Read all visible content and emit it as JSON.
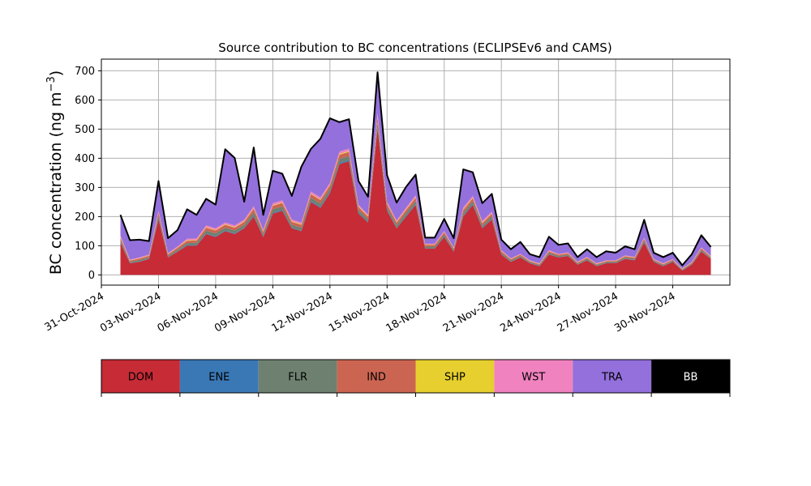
{
  "chart_data": {
    "type": "area",
    "stacked": true,
    "title": "Source contribution to BC concentrations (ECLIPSEv6 and CAMS)",
    "ylabel": "BC concentration (ng m⁻³)",
    "xlabel": "",
    "ylim": [
      -35,
      740
    ],
    "xlim": [
      "2024-10-31",
      "2024-12-03"
    ],
    "grid": true,
    "yticks": [
      0,
      100,
      200,
      300,
      400,
      500,
      600,
      700
    ],
    "xticks": [
      "31-Oct-2024",
      "03-Nov-2024",
      "06-Nov-2024",
      "09-Nov-2024",
      "12-Nov-2024",
      "15-Nov-2024",
      "18-Nov-2024",
      "21-Nov-2024",
      "24-Nov-2024",
      "27-Nov-2024",
      "30-Nov-2024"
    ],
    "x": [
      "2024-11-01",
      "2024-11-01T12",
      "2024-11-02",
      "2024-11-02T12",
      "2024-11-03",
      "2024-11-03T12",
      "2024-11-04",
      "2024-11-04T12",
      "2024-11-05",
      "2024-11-05T12",
      "2024-11-06",
      "2024-11-06T12",
      "2024-11-07",
      "2024-11-07T12",
      "2024-11-08",
      "2024-11-08T12",
      "2024-11-09",
      "2024-11-09T12",
      "2024-11-10",
      "2024-11-10T12",
      "2024-11-11",
      "2024-11-11T12",
      "2024-11-12",
      "2024-11-12T12",
      "2024-11-13",
      "2024-11-13T12",
      "2024-11-14",
      "2024-11-14T12",
      "2024-11-15",
      "2024-11-15T12",
      "2024-11-16",
      "2024-11-16T12",
      "2024-11-17",
      "2024-11-17T12",
      "2024-11-18",
      "2024-11-18T12",
      "2024-11-19",
      "2024-11-19T12",
      "2024-11-20",
      "2024-11-20T12",
      "2024-11-21",
      "2024-11-21T12",
      "2024-11-22",
      "2024-11-22T12",
      "2024-11-23",
      "2024-11-23T12",
      "2024-11-24",
      "2024-11-24T12",
      "2024-11-25",
      "2024-11-25T12",
      "2024-11-26",
      "2024-11-26T12",
      "2024-11-27",
      "2024-11-27T12",
      "2024-11-28",
      "2024-11-28T12",
      "2024-11-29",
      "2024-11-29T12",
      "2024-11-30",
      "2024-11-30T12",
      "2024-12-01",
      "2024-12-01T12",
      "2024-12-02"
    ],
    "series": [
      {
        "name": "DOM",
        "color": "#c62b36",
        "values": [
          110,
          40,
          45,
          55,
          190,
          60,
          80,
          100,
          100,
          140,
          130,
          150,
          140,
          160,
          200,
          130,
          210,
          220,
          160,
          150,
          250,
          230,
          280,
          380,
          390,
          210,
          180,
          500,
          220,
          160,
          200,
          240,
          90,
          90,
          130,
          80,
          200,
          240,
          160,
          190,
          70,
          45,
          60,
          40,
          30,
          70,
          60,
          65,
          35,
          50,
          30,
          40,
          40,
          55,
          50,
          110,
          45,
          30,
          45,
          15,
          35,
          80,
          55
        ]
      },
      {
        "name": "ENE",
        "color": "#3a78b5",
        "values": [
          2,
          1,
          1,
          1,
          3,
          1,
          1,
          2,
          2,
          2,
          2,
          2,
          2,
          2,
          3,
          2,
          3,
          3,
          2,
          2,
          3,
          3,
          3,
          4,
          4,
          3,
          2,
          5,
          3,
          2,
          3,
          3,
          1,
          1,
          2,
          1,
          3,
          3,
          2,
          2,
          1,
          1,
          1,
          1,
          1,
          1,
          1,
          1,
          1,
          1,
          1,
          1,
          1,
          1,
          1,
          2,
          1,
          1,
          1,
          1,
          1,
          1,
          1
        ]
      },
      {
        "name": "FLR",
        "color": "#6e8170",
        "values": [
          8,
          4,
          5,
          5,
          10,
          5,
          6,
          7,
          8,
          10,
          10,
          10,
          10,
          10,
          12,
          8,
          12,
          12,
          10,
          10,
          12,
          12,
          12,
          14,
          14,
          10,
          9,
          18,
          10,
          9,
          10,
          11,
          6,
          6,
          7,
          5,
          10,
          10,
          8,
          9,
          5,
          4,
          4,
          3,
          3,
          5,
          4,
          4,
          3,
          4,
          3,
          3,
          3,
          4,
          4,
          6,
          3,
          3,
          3,
          2,
          3,
          5,
          3
        ]
      },
      {
        "name": "IND",
        "color": "#cc6452",
        "values": [
          8,
          4,
          5,
          5,
          10,
          5,
          6,
          8,
          8,
          10,
          10,
          10,
          10,
          10,
          12,
          8,
          12,
          12,
          10,
          10,
          12,
          12,
          12,
          14,
          14,
          10,
          9,
          18,
          10,
          9,
          10,
          11,
          6,
          6,
          7,
          5,
          10,
          10,
          8,
          9,
          5,
          4,
          4,
          3,
          3,
          5,
          4,
          4,
          3,
          4,
          3,
          3,
          3,
          4,
          4,
          6,
          3,
          3,
          3,
          2,
          3,
          5,
          3
        ]
      },
      {
        "name": "SHP",
        "color": "#e6cf2e",
        "values": [
          2,
          1,
          1,
          1,
          2,
          1,
          1,
          2,
          2,
          2,
          2,
          2,
          2,
          2,
          2,
          2,
          2,
          2,
          2,
          2,
          2,
          2,
          2,
          3,
          3,
          2,
          2,
          3,
          2,
          2,
          2,
          2,
          1,
          1,
          1,
          1,
          2,
          2,
          2,
          2,
          1,
          1,
          1,
          1,
          1,
          1,
          1,
          1,
          1,
          1,
          1,
          1,
          1,
          1,
          1,
          1,
          1,
          1,
          1,
          1,
          1,
          1,
          1
        ]
      },
      {
        "name": "WST",
        "color": "#ef82bf",
        "values": [
          5,
          3,
          3,
          3,
          6,
          3,
          4,
          5,
          5,
          6,
          6,
          6,
          6,
          6,
          7,
          5,
          7,
          7,
          6,
          6,
          7,
          7,
          7,
          8,
          8,
          6,
          5,
          10,
          6,
          5,
          6,
          6,
          3,
          3,
          4,
          3,
          6,
          6,
          5,
          5,
          3,
          2,
          2,
          2,
          2,
          3,
          2,
          2,
          2,
          2,
          2,
          2,
          2,
          2,
          2,
          3,
          2,
          2,
          2,
          1,
          2,
          3,
          2
        ]
      },
      {
        "name": "TRA",
        "color": "#9370db",
        "values": [
          70,
          65,
          60,
          45,
          100,
          50,
          55,
          100,
          80,
          90,
          80,
          250,
          230,
          60,
          200,
          50,
          110,
          90,
          80,
          190,
          145,
          200,
          220,
          100,
          100,
          80,
          60,
          140,
          90,
          60,
          70,
          70,
          20,
          20,
          40,
          30,
          130,
          80,
          60,
          60,
          35,
          30,
          40,
          20,
          20,
          45,
          30,
          30,
          15,
          25,
          20,
          30,
          25,
          30,
          25,
          60,
          20,
          20,
          20,
          10,
          25,
          40,
          30
        ]
      },
      {
        "name": "BB",
        "color": "#000000",
        "values": [
          1,
          1,
          1,
          1,
          1,
          1,
          1,
          1,
          1,
          1,
          1,
          1,
          1,
          1,
          1,
          1,
          1,
          1,
          1,
          1,
          1,
          1,
          1,
          1,
          1,
          1,
          1,
          1,
          1,
          1,
          1,
          1,
          1,
          1,
          1,
          1,
          1,
          1,
          1,
          1,
          1,
          1,
          1,
          1,
          1,
          1,
          1,
          1,
          1,
          1,
          1,
          1,
          1,
          1,
          1,
          1,
          1,
          1,
          1,
          1,
          1,
          1,
          1
        ]
      }
    ],
    "legend": [
      "DOM",
      "ENE",
      "FLR",
      "IND",
      "SHP",
      "WST",
      "TRA",
      "BB"
    ],
    "legend_placement": "bottom",
    "grid_color": "#b0b0b0",
    "total_line_color": "#000000"
  }
}
